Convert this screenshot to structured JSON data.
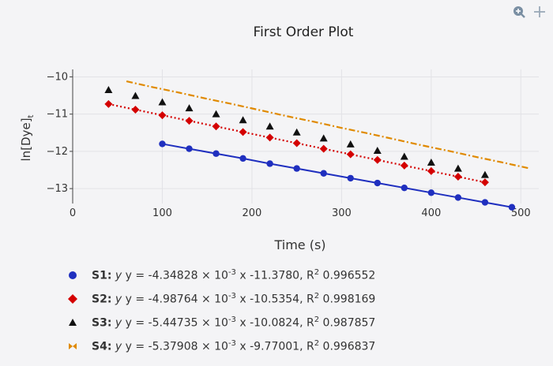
{
  "toolbar": {
    "zoom_icon": "magnifier-plus-icon",
    "pan_icon": "crosshair-move-icon"
  },
  "chart_data": {
    "type": "scatter",
    "title": "First Order Plot",
    "xlabel": "Time (s)",
    "ylabel": "ln[Dye]",
    "ylabel_subscript": "t",
    "xlim": [
      0,
      520
    ],
    "ylim": [
      -13.4,
      -9.8
    ],
    "xticks": [
      0,
      100,
      200,
      300,
      400,
      500
    ],
    "yticks": [
      -10,
      -11,
      -12,
      -13
    ],
    "grid": true,
    "legend_position": "bottom-left",
    "series": [
      {
        "name": "S1",
        "marker": "circle",
        "line": "solid",
        "color": "#1f2fbf",
        "x": [
          100,
          130,
          160,
          190,
          220,
          250,
          280,
          310,
          340,
          370,
          400,
          430,
          460,
          490
        ],
        "y": [
          -11.8,
          -11.93,
          -12.06,
          -12.19,
          -12.33,
          -12.46,
          -12.59,
          -12.72,
          -12.85,
          -12.98,
          -13.11,
          -13.24,
          -13.37,
          -13.5
        ],
        "fit": "y = -4.34828 × 10^-3 x -11.3780, R^2 0.996552",
        "legend_label": "S1:",
        "legend_eq": "y = -4.34828 × 10",
        "legend_exp": "-3",
        "legend_eq2": "x -11.3780, R",
        "legend_r2_exp": "2",
        "legend_r2": "0.996552"
      },
      {
        "name": "S2",
        "marker": "diamond",
        "line": "dotted",
        "color": "#d40000",
        "x": [
          40,
          70,
          100,
          130,
          160,
          190,
          220,
          250,
          280,
          310,
          340,
          370,
          400,
          430,
          460
        ],
        "y": [
          -10.73,
          -10.88,
          -11.03,
          -11.18,
          -11.33,
          -11.48,
          -11.63,
          -11.78,
          -11.93,
          -12.08,
          -12.23,
          -12.38,
          -12.53,
          -12.68,
          -12.83
        ],
        "fit": "y = -4.98764 × 10^-3 x -10.5354, R^2 0.998169",
        "legend_label": "S2:",
        "legend_eq": "y = -4.98764 × 10",
        "legend_exp": "-3",
        "legend_eq2": "x -10.5354, R",
        "legend_r2_exp": "2",
        "legend_r2": "0.998169"
      },
      {
        "name": "S3",
        "marker": "triangle",
        "line": "none",
        "color": "#111111",
        "x": [
          40,
          70,
          100,
          130,
          160,
          190,
          220,
          250,
          280,
          310,
          340,
          370,
          400,
          430,
          460
        ],
        "y": [
          -10.35,
          -10.51,
          -10.68,
          -10.84,
          -11.0,
          -11.16,
          -11.33,
          -11.49,
          -11.65,
          -11.81,
          -11.98,
          -12.14,
          -12.3,
          -12.46,
          -12.63
        ],
        "fit": "y = -5.44735 × 10^-3 x -10.0824, R^2 0.987857",
        "legend_label": "S3:",
        "legend_eq": "y = -5.44735 × 10",
        "legend_exp": "-3",
        "legend_eq2": "x -10.0824, R",
        "legend_r2_exp": "2",
        "legend_r2": "0.987857"
      },
      {
        "name": "S4",
        "marker": "bowtie",
        "line": "dashdot",
        "color": "#e08a00",
        "x": [
          60,
          90,
          120,
          150,
          180,
          210,
          240,
          270,
          300,
          330,
          360,
          390,
          420,
          450,
          480,
          510
        ],
        "y": [
          -10.12,
          -10.28,
          -10.43,
          -10.59,
          -10.74,
          -10.9,
          -11.06,
          -11.21,
          -11.37,
          -11.52,
          -11.68,
          -11.84,
          -11.99,
          -12.15,
          -12.3,
          -12.46
        ],
        "fit": "y = -5.37908 × 10^-3 x -9.77001, R^2 0.996837",
        "legend_label": "S4:",
        "legend_eq": "y = -5.37908 × 10",
        "legend_exp": "-3",
        "legend_eq2": "x -9.77001, R",
        "legend_r2_exp": "2",
        "legend_r2": "0.996837"
      }
    ]
  }
}
